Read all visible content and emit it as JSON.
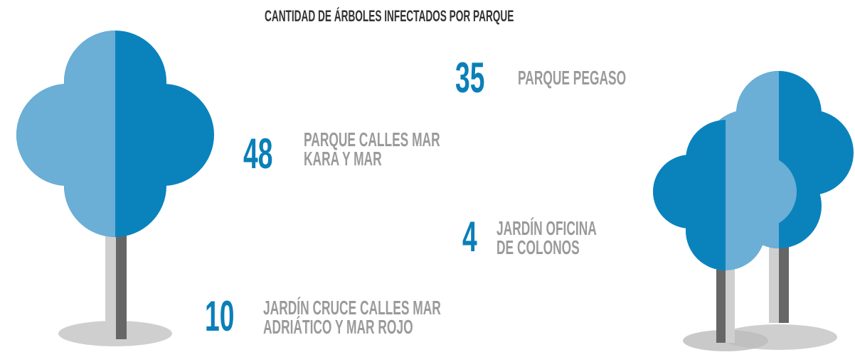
{
  "title": "CANTIDAD DE ÁRBOLES INFECTADOS POR PARQUE",
  "items": [
    {
      "value": 35,
      "label": [
        "PARQUE PEGASO"
      ]
    },
    {
      "value": 48,
      "label": [
        "PARQUE CALLES MAR",
        "KARA Y MAR"
      ]
    },
    {
      "value": 4,
      "label": [
        "JARDÍN OFICINA",
        "DE COLONOS"
      ]
    },
    {
      "value": 10,
      "label": [
        "JARDÍN CRUCE CALLES MAR",
        "ADRIÁTICO Y MAR ROJO"
      ]
    }
  ]
}
